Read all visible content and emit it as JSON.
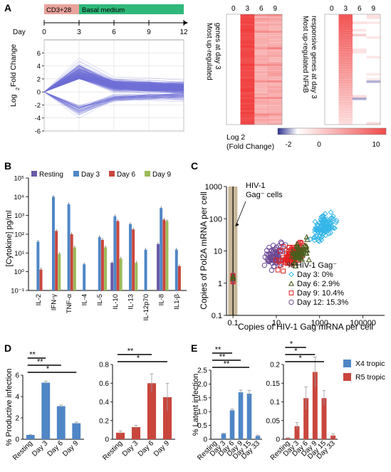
{
  "panel_labels": {
    "A": "A",
    "B": "B",
    "C": "C",
    "D": "D",
    "E": "E"
  },
  "colors": {
    "resting": "#6a5aa8",
    "day3": "#4f86c6",
    "day6": "#c9463d",
    "day9": "#9bbb59",
    "x4": "#4f86c6",
    "r5": "#c9463d",
    "lines": "#6f6fd6",
    "heat_red": "#f04a4a",
    "heat_blue": "#2b2f8f",
    "cd3_bar": "#e8a39b",
    "basal_bar": "#2fb87a",
    "grey_band": "#c8b89a"
  },
  "chart_data": [
    {
      "id": "A_timeline",
      "type": "line",
      "treatment_labels": [
        "CD3+28",
        "Basal medium"
      ],
      "day_label": "Day",
      "days": [
        0,
        3,
        6,
        9,
        12
      ],
      "ylabel_prefix": "Log",
      "ylabel_sub": "2",
      "ylabel": "Fold Change",
      "yticks": [
        -6,
        -4,
        -2,
        0,
        2,
        4,
        6
      ],
      "ylim": [
        -6,
        8
      ],
      "xlim": [
        0,
        12
      ],
      "peak_day": 3
    },
    {
      "id": "A_heat1",
      "type": "heatmap",
      "columns": [
        "0",
        "3",
        "6",
        "9"
      ],
      "side_label": [
        "Most up-regulated",
        "genes at day 3"
      ]
    },
    {
      "id": "A_heat2",
      "type": "heatmap",
      "columns": [
        "0",
        "3",
        "6",
        "9"
      ],
      "side_label": [
        "Most up-regulated NFkB",
        "responsive genes at day 3"
      ],
      "colorbar_title": [
        "Log 2",
        "(Fold Change)"
      ],
      "colorbar_ticks": [
        "-2",
        "0",
        "10"
      ]
    },
    {
      "id": "B_cytokines",
      "type": "bar",
      "ylabel": "[Cytokine] pg/ml",
      "yscale": "log",
      "ylim": [
        0.1,
        100000
      ],
      "yticks": [
        "10⁻¹",
        "10⁰",
        "10¹",
        "10²",
        "10³",
        "10⁴",
        "10⁵"
      ],
      "legend_position": "top",
      "categories": [
        "IL-2",
        "IFN-γ",
        "TNF-α",
        "IL-4",
        "IL-5",
        "IL-10",
        "IL-13",
        "IL-12p70",
        "IL-8",
        "IL1-β"
      ],
      "series": [
        {
          "name": "Resting",
          "values": [
            null,
            null,
            null,
            null,
            null,
            3,
            null,
            null,
            30,
            null
          ]
        },
        {
          "name": "Day 3",
          "values": [
            40,
            10000,
            4000,
            2.5,
            70,
            900,
            350,
            15,
            2500,
            15
          ]
        },
        {
          "name": "Day 6",
          "values": [
            1.3,
            150,
            100,
            null,
            50,
            500,
            180,
            null,
            600,
            2
          ]
        },
        {
          "name": "Day 9",
          "values": [
            null,
            9,
            20,
            null,
            20,
            5,
            3,
            null,
            500,
            null
          ]
        }
      ]
    },
    {
      "id": "C_scatter",
      "type": "scatter",
      "xlabel": "Copies of HIV-1 Gag mRNA per cell",
      "ylabel": "Copies of Pol2A mRNA per cell",
      "xscale": "log",
      "yscale": "log",
      "xticks": [
        "0.1",
        "10",
        "1000",
        "100000"
      ],
      "yticks": [
        "0.1",
        "1",
        "10",
        "100",
        "1000"
      ],
      "xlim": [
        0.05,
        1000000
      ],
      "ylim": [
        0.1,
        1000
      ],
      "annotation": [
        "HIV-1",
        "Gag⁻ cells"
      ],
      "legend_title": "% HIV-1 Gag⁻",
      "series": [
        {
          "name": "Day 3: 0%",
          "marker": "diamond"
        },
        {
          "name": "Day 6: 2.9%",
          "marker": "triangle"
        },
        {
          "name": "Day 9: 10.4%",
          "marker": "square"
        },
        {
          "name": "Day 12: 15.3%",
          "marker": "circle"
        }
      ]
    },
    {
      "id": "D_x4",
      "type": "bar",
      "ylabel": "% Productive infection",
      "categories": [
        "Resting",
        "Day 3",
        "Day 6",
        "Day 9"
      ],
      "values": [
        0.4,
        5.3,
        3.1,
        1.5
      ],
      "errors": [
        0.05,
        0.15,
        0.1,
        0.1
      ],
      "ylim": [
        0,
        6
      ],
      "yticks": [
        "0",
        "2",
        "4",
        "6"
      ],
      "significance": [
        {
          "from": 0,
          "to": 1,
          "label": "**"
        },
        {
          "from": 0,
          "to": 2,
          "label": "**"
        },
        {
          "from": 0,
          "to": 3,
          "label": "*"
        }
      ]
    },
    {
      "id": "D_r5",
      "type": "bar",
      "categories": [
        "Resting",
        "Day 3",
        "Day 6",
        "Day 9"
      ],
      "values": [
        0.07,
        0.13,
        0.6,
        0.45
      ],
      "errors": [
        0.02,
        0.02,
        0.1,
        0.15
      ],
      "ylim": [
        0,
        0.8
      ],
      "yticks": [
        "0",
        "0.2",
        "0.4",
        "0.6",
        "0.8"
      ],
      "significance": [
        {
          "from": 0,
          "to": 2,
          "label": "**"
        },
        {
          "from": 0,
          "to": 3,
          "label": "*"
        }
      ]
    },
    {
      "id": "E_x4",
      "type": "bar",
      "ylabel": "% Latent infection",
      "categories": [
        "Resting",
        "Day 3",
        "Day 6",
        "Day 9",
        "Day 15",
        "Day 33"
      ],
      "values": [
        0,
        0.2,
        1.05,
        1.7,
        1.65,
        0.12
      ],
      "errors": [
        0,
        0.02,
        0.05,
        0.08,
        0.12,
        0.03
      ],
      "ylim": [
        0,
        2.5
      ],
      "yticks": [
        "0",
        "0.5",
        "1.0",
        "1.5",
        "2.0",
        "2.5"
      ],
      "significance": [
        {
          "from": 0,
          "to": 2,
          "label": "**"
        },
        {
          "from": 0,
          "to": 3,
          "label": "**"
        },
        {
          "from": 0,
          "to": 4,
          "label": "**"
        }
      ]
    },
    {
      "id": "E_r5",
      "type": "bar",
      "categories": [
        "Resting",
        "Day 3",
        "Day 6",
        "Day 9",
        "Day 15",
        "Day 33"
      ],
      "values": [
        0.003,
        0.035,
        0.11,
        0.18,
        0.11,
        0.01
      ],
      "errors": [
        0.001,
        0.01,
        0.03,
        0.04,
        0.02,
        0.005
      ],
      "ylim": [
        0,
        0.2
      ],
      "yticks": [
        "0",
        "0.05",
        "0.1",
        "0.15",
        "0.2"
      ],
      "significance": [
        {
          "from": 0,
          "to": 2,
          "label": "*"
        },
        {
          "from": 0,
          "to": 3,
          "label": "*"
        },
        {
          "from": 0,
          "to": 4,
          "label": "*"
        }
      ]
    }
  ],
  "e_legend": [
    {
      "name": "X4 tropic"
    },
    {
      "name": "R5 tropic"
    }
  ]
}
